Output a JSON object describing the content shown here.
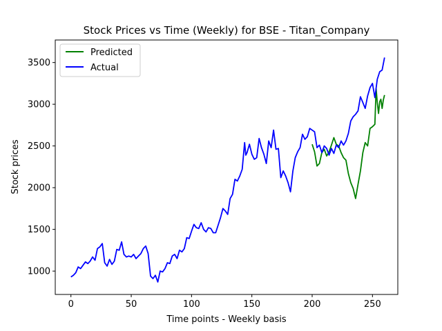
{
  "chart_data": {
    "type": "line",
    "title": "Stock Prices vs Time (Weekly) for BSE - Titan_Company",
    "xlabel": "Time points - Weekly basis",
    "ylabel": "Stock prices",
    "xlim": [
      -13,
      271
    ],
    "ylim": [
      720,
      3770
    ],
    "xticks": [
      0,
      50,
      100,
      150,
      200,
      250
    ],
    "yticks": [
      1000,
      1500,
      2000,
      2500,
      3000,
      3500
    ],
    "grid": false,
    "legend": {
      "position": "top-left",
      "entries": [
        "Predicted",
        "Actual"
      ]
    },
    "series": [
      {
        "name": "Predicted",
        "color": "#008000",
        "x": [
          200,
          202,
          204,
          206,
          208,
          210,
          212,
          214,
          216,
          218,
          220,
          222,
          224,
          226,
          228,
          230,
          232,
          234,
          236,
          238,
          240,
          242,
          244,
          246,
          248,
          250,
          252,
          253,
          254,
          255,
          256,
          257,
          258,
          259,
          260
        ],
        "y": [
          2520,
          2430,
          2260,
          2290,
          2420,
          2460,
          2380,
          2430,
          2510,
          2600,
          2520,
          2500,
          2420,
          2360,
          2330,
          2170,
          2060,
          1990,
          1870,
          2040,
          2200,
          2420,
          2540,
          2500,
          2710,
          2730,
          2760,
          3190,
          3020,
          2890,
          3030,
          3060,
          2950,
          3050,
          3110
        ]
      },
      {
        "name": "Actual",
        "color": "#0000ff",
        "x": [
          0,
          2,
          4,
          6,
          8,
          10,
          12,
          14,
          16,
          18,
          20,
          22,
          24,
          26,
          28,
          30,
          32,
          34,
          36,
          38,
          40,
          42,
          44,
          46,
          48,
          50,
          52,
          54,
          56,
          58,
          60,
          62,
          64,
          66,
          68,
          70,
          72,
          74,
          76,
          78,
          80,
          82,
          84,
          86,
          88,
          90,
          92,
          94,
          96,
          98,
          100,
          102,
          104,
          106,
          108,
          110,
          112,
          114,
          116,
          118,
          120,
          122,
          124,
          126,
          128,
          130,
          132,
          134,
          136,
          138,
          140,
          142,
          144,
          145,
          146,
          148,
          150,
          152,
          154,
          156,
          158,
          160,
          162,
          164,
          166,
          168,
          170,
          172,
          174,
          176,
          178,
          180,
          182,
          184,
          186,
          188,
          190,
          192,
          194,
          196,
          198,
          200,
          202,
          204,
          206,
          208,
          210,
          212,
          214,
          216,
          218,
          220,
          222,
          224,
          226,
          228,
          230,
          232,
          234,
          236,
          238,
          240,
          242,
          244,
          246,
          248,
          250,
          252,
          254,
          256,
          258,
          260
        ],
        "y": [
          930,
          950,
          980,
          1050,
          1030,
          1070,
          1110,
          1090,
          1120,
          1170,
          1130,
          1270,
          1290,
          1330,
          1100,
          1060,
          1140,
          1080,
          1120,
          1260,
          1250,
          1350,
          1200,
          1170,
          1180,
          1170,
          1200,
          1150,
          1180,
          1210,
          1270,
          1300,
          1210,
          940,
          910,
          950,
          870,
          1000,
          990,
          1030,
          1100,
          1090,
          1180,
          1200,
          1150,
          1250,
          1230,
          1270,
          1400,
          1390,
          1480,
          1560,
          1520,
          1510,
          1580,
          1500,
          1470,
          1520,
          1510,
          1460,
          1460,
          1550,
          1640,
          1750,
          1720,
          1680,
          1870,
          1920,
          2100,
          2080,
          2140,
          2220,
          2540,
          2390,
          2420,
          2520,
          2400,
          2340,
          2360,
          2590,
          2480,
          2400,
          2290,
          2560,
          2480,
          2690,
          2460,
          2470,
          2120,
          2200,
          2140,
          2060,
          1950,
          2200,
          2360,
          2430,
          2480,
          2640,
          2580,
          2610,
          2710,
          2690,
          2670,
          2480,
          2510,
          2420,
          2500,
          2470,
          2390,
          2470,
          2410,
          2510,
          2480,
          2560,
          2510,
          2560,
          2650,
          2800,
          2850,
          2880,
          2920,
          3090,
          3020,
          2950,
          3100,
          3200,
          3250,
          3080,
          3300,
          3390,
          3410,
          3560
        ]
      }
    ]
  }
}
